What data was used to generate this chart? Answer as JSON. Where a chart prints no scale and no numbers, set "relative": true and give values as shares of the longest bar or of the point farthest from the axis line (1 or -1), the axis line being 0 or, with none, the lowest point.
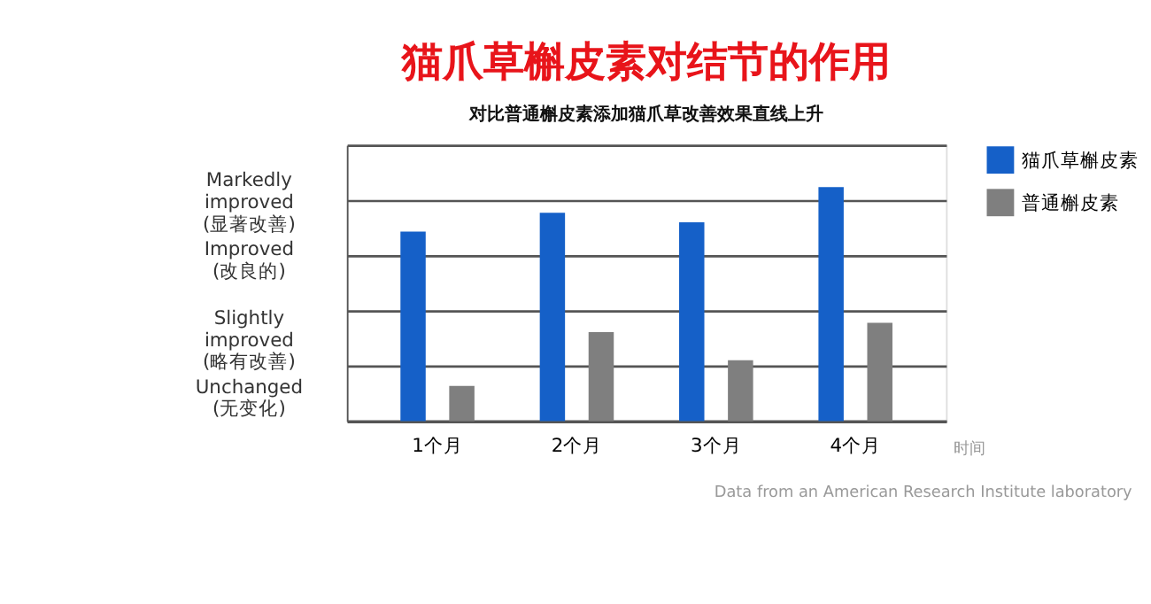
{
  "chart_data": {
    "type": "bar",
    "title": "猫爪草槲皮素对结节的作用",
    "subtitle": "对比普通槲皮素添加猫爪草改善效果直线上升",
    "xlabel": "时间",
    "categories": [
      "1个月",
      "2个月",
      "3个月",
      "4个月"
    ],
    "relative": true,
    "series": [
      {
        "name": "猫爪草槲皮素",
        "color": "#1560c8",
        "values": [
          0.81,
          0.89,
          0.85,
          1.0
        ]
      },
      {
        "name": "普通槲皮素",
        "color": "#7f7f7f",
        "values": [
          0.15,
          0.38,
          0.26,
          0.42
        ]
      }
    ],
    "annotations": [
      "Markedly\nimproved\n(显著改善)",
      "Improved\n(改良的)",
      "Slightly\nimproved\n(略有改善)",
      "Unchanged\n(无变化)",
      "Data from an American Research Institute laboratory"
    ],
    "grid": "y",
    "legend": "top right"
  }
}
